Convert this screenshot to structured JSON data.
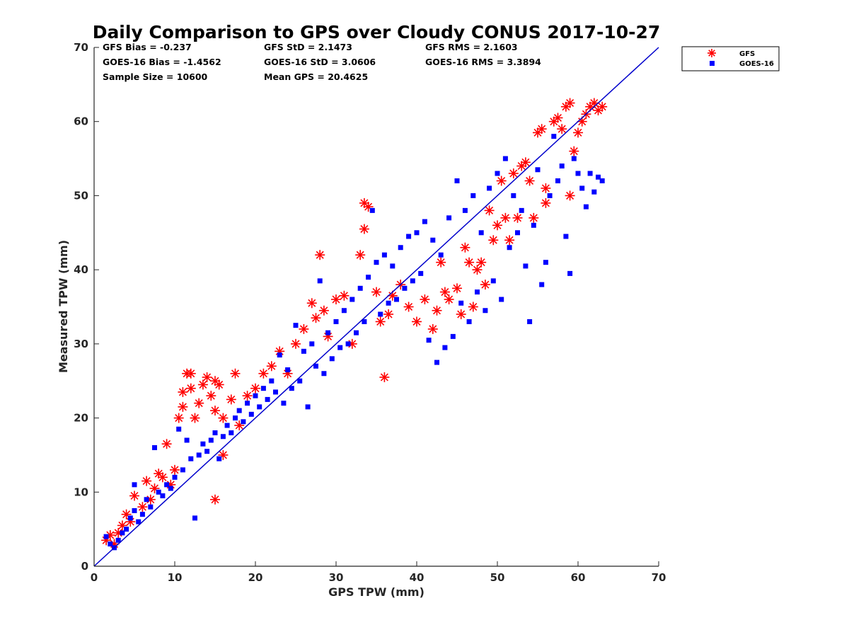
{
  "chart_data": {
    "type": "scatter",
    "title": "Daily Comparison to GPS over Cloudy CONUS 2017-10-27",
    "xlabel": "GPS TPW (mm)",
    "ylabel": "Measured TPW (mm)",
    "xlim": [
      0,
      70
    ],
    "ylim": [
      0,
      70
    ],
    "xticks": [
      "0",
      "10",
      "20",
      "30",
      "40",
      "50",
      "60",
      "70"
    ],
    "yticks": [
      "0",
      "10",
      "20",
      "30",
      "40",
      "50",
      "60",
      "70"
    ],
    "grid": false,
    "legend_position": "outside-top-right",
    "one_to_one_line": {
      "x": [
        0,
        70
      ],
      "y": [
        0,
        70
      ],
      "color": "#0000cc"
    },
    "stats": {
      "gfs_bias": "GFS Bias = -0.237",
      "gfs_std": "GFS StD = 2.1473",
      "gfs_rms": "GFS RMS = 2.1603",
      "goes_bias": "GOES-16 Bias = -1.4562",
      "goes_std": "GOES-16 StD = 3.0606",
      "goes_rms": "GOES-16 RMS = 3.3894",
      "sample_size": "Sample Size = 10600",
      "mean_gps": "Mean GPS = 20.4625"
    },
    "series": [
      {
        "name": "GFS",
        "marker": "asterisk",
        "color": "#ff0000",
        "points": [
          [
            1.5,
            3.5
          ],
          [
            2.0,
            4.2
          ],
          [
            2.5,
            3.0
          ],
          [
            3.0,
            4.5
          ],
          [
            3.5,
            5.5
          ],
          [
            4.0,
            7.0
          ],
          [
            4.5,
            6.0
          ],
          [
            5.0,
            9.5
          ],
          [
            6.0,
            8.0
          ],
          [
            6.5,
            11.5
          ],
          [
            7.0,
            9.0
          ],
          [
            7.5,
            10.5
          ],
          [
            8.0,
            12.5
          ],
          [
            8.5,
            12.0
          ],
          [
            9.0,
            16.5
          ],
          [
            9.5,
            11.0
          ],
          [
            10.0,
            13.0
          ],
          [
            10.5,
            20.0
          ],
          [
            11.0,
            23.5
          ],
          [
            11.0,
            21.5
          ],
          [
            11.5,
            26.0
          ],
          [
            12.0,
            26.0
          ],
          [
            12.0,
            24.0
          ],
          [
            12.5,
            20.0
          ],
          [
            13.0,
            22.0
          ],
          [
            13.5,
            24.5
          ],
          [
            14.0,
            25.5
          ],
          [
            14.5,
            23.0
          ],
          [
            15.0,
            25.0
          ],
          [
            15.0,
            21.0
          ],
          [
            15.5,
            24.5
          ],
          [
            16.0,
            20.0
          ],
          [
            16.0,
            15.0
          ],
          [
            15.0,
            9.0
          ],
          [
            17.0,
            22.5
          ],
          [
            17.5,
            26.0
          ],
          [
            18.0,
            19.0
          ],
          [
            19.0,
            23.0
          ],
          [
            20.0,
            24.0
          ],
          [
            21.0,
            26.0
          ],
          [
            22.0,
            27.0
          ],
          [
            23.0,
            29.0
          ],
          [
            24.0,
            26.0
          ],
          [
            25.0,
            30.0
          ],
          [
            26.0,
            32.0
          ],
          [
            27.0,
            35.5
          ],
          [
            27.5,
            33.5
          ],
          [
            28.0,
            42.0
          ],
          [
            28.5,
            34.5
          ],
          [
            29.0,
            31.0
          ],
          [
            30.0,
            36.0
          ],
          [
            31.0,
            36.5
          ],
          [
            32.0,
            30.0
          ],
          [
            33.0,
            42.0
          ],
          [
            33.5,
            45.5
          ],
          [
            33.5,
            49.0
          ],
          [
            34.0,
            48.5
          ],
          [
            35.0,
            37.0
          ],
          [
            35.5,
            33.0
          ],
          [
            36.0,
            25.5
          ],
          [
            36.5,
            34.0
          ],
          [
            37.0,
            36.5
          ],
          [
            38.0,
            38.0
          ],
          [
            39.0,
            35.0
          ],
          [
            40.0,
            33.0
          ],
          [
            41.0,
            36.0
          ],
          [
            42.0,
            32.0
          ],
          [
            42.5,
            34.5
          ],
          [
            43.0,
            41.0
          ],
          [
            43.5,
            37.0
          ],
          [
            44.0,
            36.0
          ],
          [
            45.0,
            37.5
          ],
          [
            45.5,
            34.0
          ],
          [
            46.0,
            43.0
          ],
          [
            46.5,
            41.0
          ],
          [
            47.0,
            35.0
          ],
          [
            47.5,
            40.0
          ],
          [
            48.0,
            41.0
          ],
          [
            48.5,
            38.0
          ],
          [
            49.0,
            48.0
          ],
          [
            49.5,
            44.0
          ],
          [
            50.0,
            46.0
          ],
          [
            50.5,
            52.0
          ],
          [
            51.0,
            47.0
          ],
          [
            51.5,
            44.0
          ],
          [
            52.0,
            53.0
          ],
          [
            52.5,
            47.0
          ],
          [
            53.0,
            54.0
          ],
          [
            53.5,
            54.5
          ],
          [
            54.0,
            52.0
          ],
          [
            54.5,
            47.0
          ],
          [
            55.0,
            58.5
          ],
          [
            55.5,
            59.0
          ],
          [
            56.0,
            49.0
          ],
          [
            56.0,
            51.0
          ],
          [
            57.0,
            60.0
          ],
          [
            57.5,
            60.5
          ],
          [
            58.0,
            59.0
          ],
          [
            58.5,
            62.0
          ],
          [
            59.0,
            62.5
          ],
          [
            59.0,
            50.0
          ],
          [
            59.5,
            56.0
          ],
          [
            60.0,
            58.5
          ],
          [
            60.5,
            60.0
          ],
          [
            61.0,
            61.0
          ],
          [
            61.5,
            62.0
          ],
          [
            62.0,
            62.5
          ],
          [
            62.5,
            61.5
          ],
          [
            63.0,
            62.0
          ]
        ]
      },
      {
        "name": "GOES-16",
        "marker": "square",
        "color": "#0000ff",
        "points": [
          [
            1.5,
            4.0
          ],
          [
            2.0,
            3.0
          ],
          [
            2.5,
            2.5
          ],
          [
            3.0,
            3.5
          ],
          [
            3.5,
            4.5
          ],
          [
            4.0,
            5.0
          ],
          [
            4.5,
            6.5
          ],
          [
            5.0,
            7.5
          ],
          [
            5.0,
            11.0
          ],
          [
            5.5,
            6.0
          ],
          [
            6.0,
            7.0
          ],
          [
            6.5,
            9.0
          ],
          [
            7.0,
            8.0
          ],
          [
            7.5,
            16.0
          ],
          [
            8.0,
            10.0
          ],
          [
            8.5,
            9.5
          ],
          [
            9.0,
            11.0
          ],
          [
            9.5,
            10.5
          ],
          [
            10.0,
            12.0
          ],
          [
            10.5,
            18.5
          ],
          [
            11.0,
            13.0
          ],
          [
            11.5,
            17.0
          ],
          [
            12.0,
            14.5
          ],
          [
            12.5,
            6.5
          ],
          [
            13.0,
            15.0
          ],
          [
            13.5,
            16.5
          ],
          [
            14.0,
            15.5
          ],
          [
            14.5,
            17.0
          ],
          [
            15.0,
            18.0
          ],
          [
            15.5,
            14.5
          ],
          [
            16.0,
            17.5
          ],
          [
            16.5,
            19.0
          ],
          [
            17.0,
            18.0
          ],
          [
            17.5,
            20.0
          ],
          [
            18.0,
            21.0
          ],
          [
            18.5,
            19.5
          ],
          [
            19.0,
            22.0
          ],
          [
            19.5,
            20.5
          ],
          [
            20.0,
            23.0
          ],
          [
            20.5,
            21.5
          ],
          [
            21.0,
            24.0
          ],
          [
            21.5,
            22.5
          ],
          [
            22.0,
            25.0
          ],
          [
            22.5,
            23.5
          ],
          [
            23.0,
            28.5
          ],
          [
            23.5,
            22.0
          ],
          [
            24.0,
            26.5
          ],
          [
            24.5,
            24.0
          ],
          [
            25.0,
            32.5
          ],
          [
            25.5,
            25.0
          ],
          [
            26.0,
            29.0
          ],
          [
            26.5,
            21.5
          ],
          [
            27.0,
            30.0
          ],
          [
            27.5,
            27.0
          ],
          [
            28.0,
            38.5
          ],
          [
            28.5,
            26.0
          ],
          [
            29.0,
            31.5
          ],
          [
            29.5,
            28.0
          ],
          [
            30.0,
            33.0
          ],
          [
            30.5,
            29.5
          ],
          [
            31.0,
            34.5
          ],
          [
            31.5,
            30.0
          ],
          [
            32.0,
            36.0
          ],
          [
            32.5,
            31.5
          ],
          [
            33.0,
            37.5
          ],
          [
            33.5,
            33.0
          ],
          [
            34.0,
            39.0
          ],
          [
            34.5,
            48.0
          ],
          [
            35.0,
            41.0
          ],
          [
            35.5,
            34.0
          ],
          [
            36.0,
            42.0
          ],
          [
            36.5,
            35.5
          ],
          [
            37.0,
            40.5
          ],
          [
            37.5,
            36.0
          ],
          [
            38.0,
            43.0
          ],
          [
            38.5,
            37.5
          ],
          [
            39.0,
            44.5
          ],
          [
            39.5,
            38.5
          ],
          [
            40.0,
            45.0
          ],
          [
            40.5,
            39.5
          ],
          [
            41.0,
            46.5
          ],
          [
            41.5,
            30.5
          ],
          [
            42.0,
            44.0
          ],
          [
            42.5,
            27.5
          ],
          [
            43.0,
            42.0
          ],
          [
            43.5,
            29.5
          ],
          [
            44.0,
            47.0
          ],
          [
            44.5,
            31.0
          ],
          [
            45.0,
            52.0
          ],
          [
            45.5,
            35.5
          ],
          [
            46.0,
            48.0
          ],
          [
            46.5,
            33.0
          ],
          [
            47.0,
            50.0
          ],
          [
            47.5,
            37.0
          ],
          [
            48.0,
            45.0
          ],
          [
            48.5,
            34.5
          ],
          [
            49.0,
            51.0
          ],
          [
            49.5,
            38.5
          ],
          [
            50.0,
            53.0
          ],
          [
            50.5,
            36.0
          ],
          [
            51.0,
            55.0
          ],
          [
            51.5,
            43.0
          ],
          [
            52.0,
            50.0
          ],
          [
            52.5,
            45.0
          ],
          [
            53.0,
            48.0
          ],
          [
            53.5,
            40.5
          ],
          [
            54.0,
            33.0
          ],
          [
            54.5,
            46.0
          ],
          [
            55.0,
            53.5
          ],
          [
            55.5,
            38.0
          ],
          [
            56.0,
            41.0
          ],
          [
            56.5,
            50.0
          ],
          [
            57.0,
            58.0
          ],
          [
            57.5,
            52.0
          ],
          [
            58.0,
            54.0
          ],
          [
            58.5,
            44.5
          ],
          [
            59.0,
            39.5
          ],
          [
            59.5,
            55.0
          ],
          [
            60.0,
            53.0
          ],
          [
            60.5,
            51.0
          ],
          [
            61.0,
            48.5
          ],
          [
            61.5,
            53.0
          ],
          [
            62.0,
            50.5
          ],
          [
            62.5,
            52.5
          ],
          [
            63.0,
            52.0
          ]
        ]
      }
    ]
  }
}
